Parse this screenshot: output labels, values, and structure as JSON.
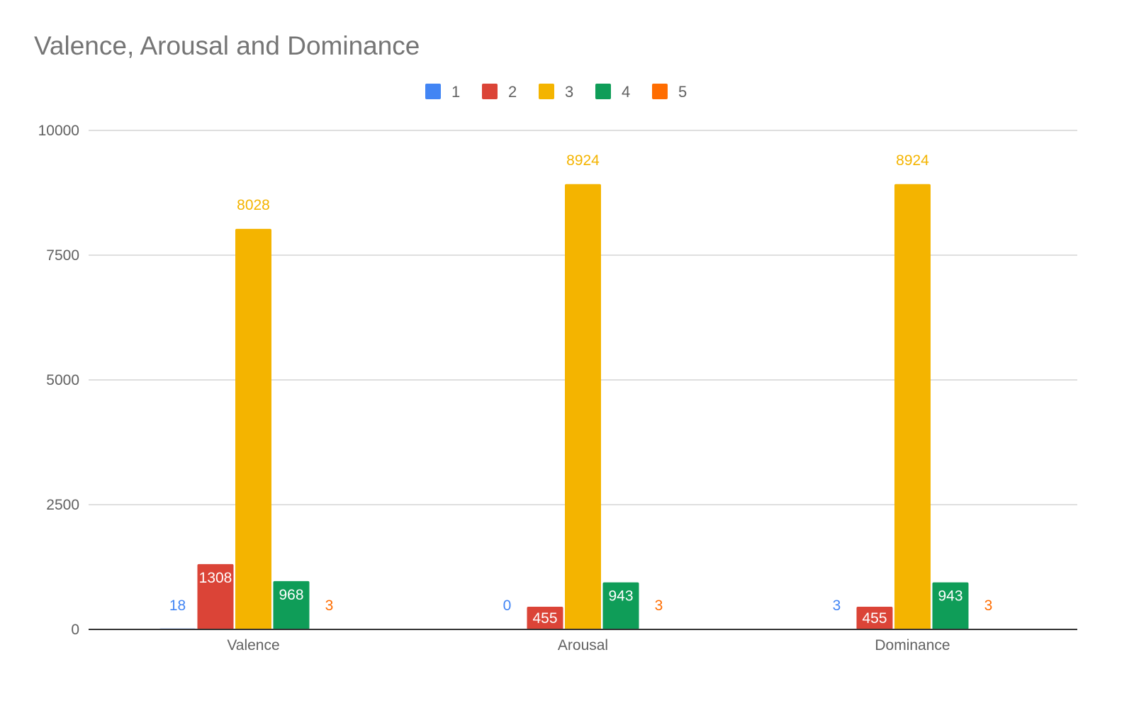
{
  "chart_data": {
    "type": "bar",
    "title": "Valence, Arousal and Dominance",
    "xlabel": "",
    "ylabel": "",
    "categories": [
      "Valence",
      "Arousal",
      "Dominance"
    ],
    "series": [
      {
        "name": "1",
        "color": "#4285f4",
        "values": [
          18,
          0,
          3
        ]
      },
      {
        "name": "2",
        "color": "#db4437",
        "values": [
          1308,
          455,
          455
        ]
      },
      {
        "name": "3",
        "color": "#f4b400",
        "values": [
          8028,
          8924,
          8924
        ]
      },
      {
        "name": "4",
        "color": "#0f9d58",
        "values": [
          968,
          943,
          943
        ]
      },
      {
        "name": "5",
        "color": "#ff6d01",
        "values": [
          3,
          3,
          3
        ]
      }
    ],
    "ylim": [
      0,
      10000
    ],
    "yticks": [
      0,
      2500,
      5000,
      7500,
      10000
    ],
    "legend_position": "top-center",
    "grid": true,
    "data_labels": true
  }
}
